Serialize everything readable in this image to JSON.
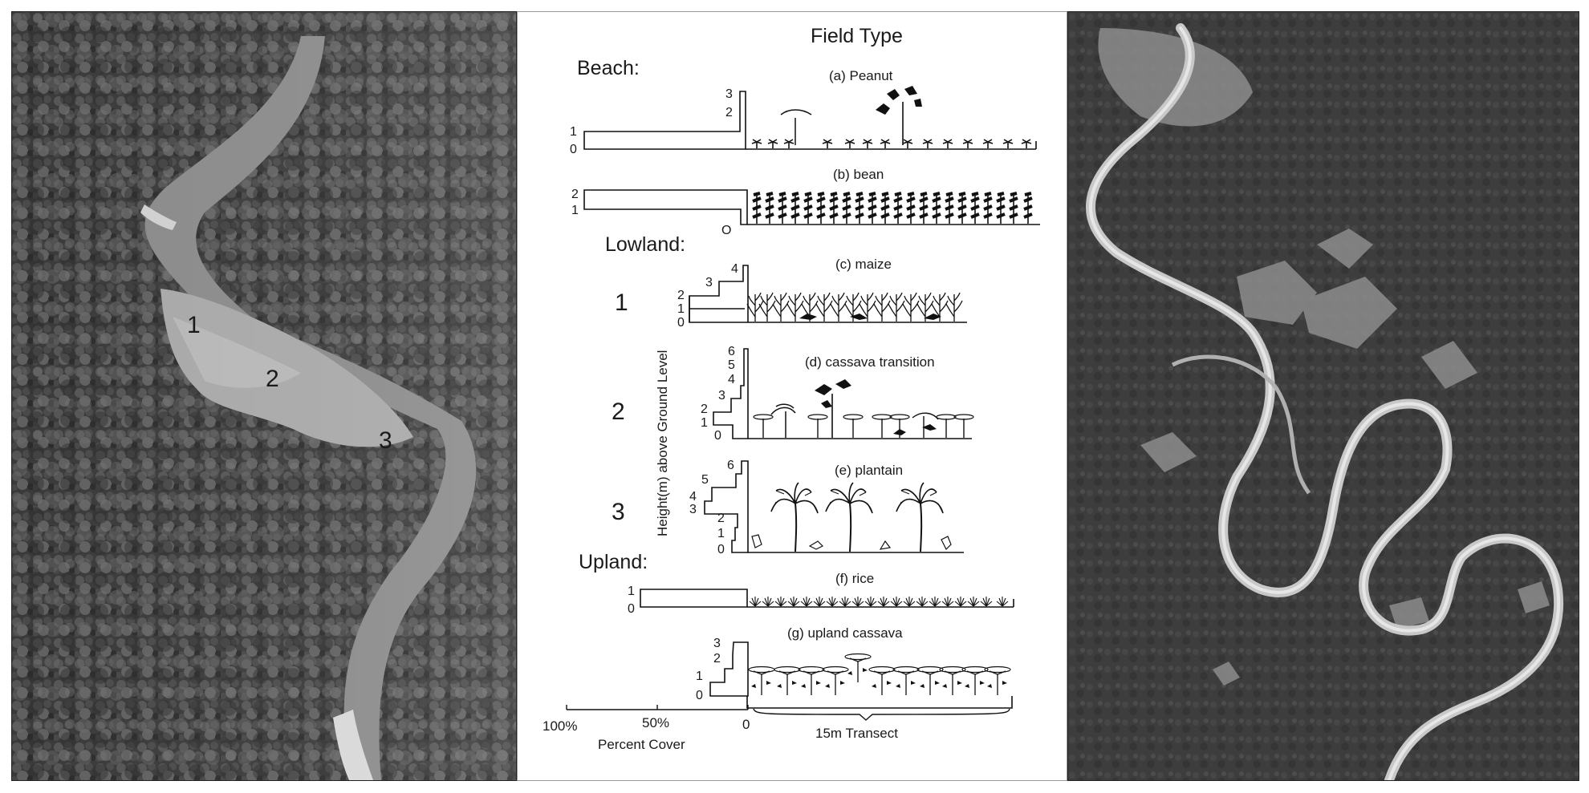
{
  "photo_left": {
    "zone_labels": [
      "1",
      "2",
      "3"
    ]
  },
  "diagram": {
    "title": "Field Type",
    "sections": {
      "beach": "Beach:",
      "lowland": "Lowland:",
      "upland": "Upland:"
    },
    "fields": {
      "a": {
        "label": "(a) Peanut",
        "ticks": [
          "3",
          "2",
          "1",
          "0"
        ]
      },
      "b": {
        "label": "(b) bean",
        "ticks": [
          "2",
          "1",
          "O"
        ]
      },
      "c": {
        "label": "(c) maize",
        "zone": "1",
        "ticks": [
          "4",
          "3",
          "2",
          "1",
          "0"
        ]
      },
      "d": {
        "label": "(d) cassava transition",
        "zone": "2",
        "ticks": [
          "6",
          "5",
          "4",
          "3",
          "2",
          "1",
          "0"
        ]
      },
      "e": {
        "label": "(e) plantain",
        "zone": "3",
        "ticks": [
          "6",
          "5",
          "4",
          "3",
          "2",
          "1",
          "0"
        ]
      },
      "f": {
        "label": "(f) rice",
        "ticks": [
          "1",
          "0"
        ]
      },
      "g": {
        "label": "(g) upland cassava",
        "ticks": [
          "3",
          "2",
          "1",
          "0"
        ]
      }
    },
    "y_axis_label": "Height(m) above Ground Level",
    "x_axis": {
      "ticks": [
        "100%",
        "50%",
        "0"
      ],
      "label": "Percent Cover",
      "transect_label": "15m Transect"
    }
  }
}
